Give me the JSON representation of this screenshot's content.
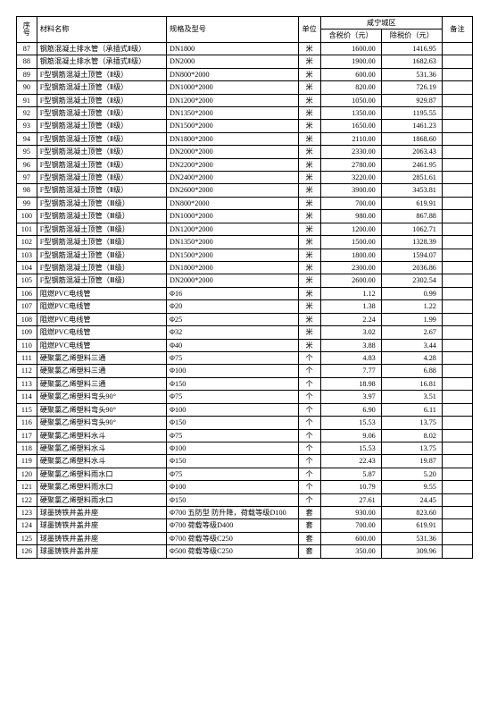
{
  "header": {
    "seq": "序\n号",
    "name": "材料名称",
    "spec": "规格及型号",
    "unit": "单位",
    "region": "咸宁城区",
    "price_tax": "含税价（元）",
    "price_notax": "除税价（元）",
    "note": "备注"
  },
  "rows": [
    {
      "seq": "87",
      "name": "钢筋混凝土排水管（承插式Ⅱ级）",
      "spec": "DN1800",
      "unit": "米",
      "p1": "1600.00",
      "p2": "1416.95",
      "note": ""
    },
    {
      "seq": "88",
      "name": "钢筋混凝土排水管（承插式Ⅱ级）",
      "spec": "DN2000",
      "unit": "米",
      "p1": "1900.00",
      "p2": "1682.63",
      "note": ""
    },
    {
      "seq": "89",
      "name": "F型钢筋混凝土顶管（Ⅱ级）",
      "spec": "DN800*2000",
      "unit": "米",
      "p1": "600.00",
      "p2": "531.36",
      "note": ""
    },
    {
      "seq": "90",
      "name": "F型钢筋混凝土顶管（Ⅱ级）",
      "spec": "DN1000*2000",
      "unit": "米",
      "p1": "820.00",
      "p2": "726.19",
      "note": ""
    },
    {
      "seq": "91",
      "name": "F型钢筋混凝土顶管（Ⅱ级）",
      "spec": "DN1200*2000",
      "unit": "米",
      "p1": "1050.00",
      "p2": "929.87",
      "note": ""
    },
    {
      "seq": "92",
      "name": "F型钢筋混凝土顶管（Ⅱ级）",
      "spec": "DN1350*2000",
      "unit": "米",
      "p1": "1350.00",
      "p2": "1195.55",
      "note": ""
    },
    {
      "seq": "93",
      "name": "F型钢筋混凝土顶管（Ⅱ级）",
      "spec": "DN1500*2000",
      "unit": "米",
      "p1": "1650.00",
      "p2": "1461.23",
      "note": ""
    },
    {
      "seq": "94",
      "name": "F型钢筋混凝土顶管（Ⅱ级）",
      "spec": "DN1800*2000",
      "unit": "米",
      "p1": "2110.00",
      "p2": "1868.60",
      "note": ""
    },
    {
      "seq": "95",
      "name": "F型钢筋混凝土顶管（Ⅱ级）",
      "spec": "DN2000*2000",
      "unit": "米",
      "p1": "2330.00",
      "p2": "2063.43",
      "note": ""
    },
    {
      "seq": "96",
      "name": "F型钢筋混凝土顶管（Ⅱ级）",
      "spec": "DN2200*2000",
      "unit": "米",
      "p1": "2780.00",
      "p2": "2461.95",
      "note": ""
    },
    {
      "seq": "97",
      "name": "F型钢筋混凝土顶管（Ⅱ级）",
      "spec": "DN2400*2000",
      "unit": "米",
      "p1": "3220.00",
      "p2": "2851.61",
      "note": ""
    },
    {
      "seq": "98",
      "name": "F型钢筋混凝土顶管（Ⅱ级）",
      "spec": "DN2600*2000",
      "unit": "米",
      "p1": "3900.00",
      "p2": "3453.81",
      "note": ""
    },
    {
      "seq": "99",
      "name": "F型钢筋混凝土顶管（Ⅲ级）",
      "spec": "DN800*2000",
      "unit": "米",
      "p1": "700.00",
      "p2": "619.91",
      "note": ""
    },
    {
      "seq": "100",
      "name": "F型钢筋混凝土顶管（Ⅲ级）",
      "spec": "DN1000*2000",
      "unit": "米",
      "p1": "980.00",
      "p2": "867.88",
      "note": ""
    },
    {
      "seq": "101",
      "name": "F型钢筋混凝土顶管（Ⅲ级）",
      "spec": "DN1200*2000",
      "unit": "米",
      "p1": "1200.00",
      "p2": "1062.71",
      "note": ""
    },
    {
      "seq": "102",
      "name": "F型钢筋混凝土顶管（Ⅲ级）",
      "spec": "DN1350*2000",
      "unit": "米",
      "p1": "1500.00",
      "p2": "1328.39",
      "note": ""
    },
    {
      "seq": "103",
      "name": "F型钢筋混凝土顶管（Ⅲ级）",
      "spec": "DN1500*2000",
      "unit": "米",
      "p1": "1800.00",
      "p2": "1594.07",
      "note": ""
    },
    {
      "seq": "104",
      "name": "F型钢筋混凝土顶管（Ⅲ级）",
      "spec": "DN1800*2000",
      "unit": "米",
      "p1": "2300.00",
      "p2": "2036.86",
      "note": ""
    },
    {
      "seq": "105",
      "name": "F型钢筋混凝土顶管（Ⅲ级）",
      "spec": "DN2000*2000",
      "unit": "米",
      "p1": "2600.00",
      "p2": "2302.54",
      "note": ""
    },
    {
      "seq": "106",
      "name": "阻燃PVC电线管",
      "spec": "Φ16",
      "unit": "米",
      "p1": "1.12",
      "p2": "0.99",
      "note": ""
    },
    {
      "seq": "107",
      "name": "阻燃PVC电线管",
      "spec": "Φ20",
      "unit": "米",
      "p1": "1.38",
      "p2": "1.22",
      "note": ""
    },
    {
      "seq": "108",
      "name": "阻燃PVC电线管",
      "spec": "Φ25",
      "unit": "米",
      "p1": "2.24",
      "p2": "1.99",
      "note": ""
    },
    {
      "seq": "109",
      "name": "阻燃PVC电线管",
      "spec": "Φ32",
      "unit": "米",
      "p1": "3.02",
      "p2": "2.67",
      "note": ""
    },
    {
      "seq": "110",
      "name": "阻燃PVC电线管",
      "spec": "Φ40",
      "unit": "米",
      "p1": "3.88",
      "p2": "3.44",
      "note": ""
    },
    {
      "seq": "111",
      "name": "硬聚氯乙烯塑料三通",
      "spec": "Φ75",
      "unit": "个",
      "p1": "4.83",
      "p2": "4.28",
      "note": ""
    },
    {
      "seq": "112",
      "name": "硬聚氯乙烯塑料三通",
      "spec": "Φ100",
      "unit": "个",
      "p1": "7.77",
      "p2": "6.88",
      "note": ""
    },
    {
      "seq": "113",
      "name": "硬聚氯乙烯塑料三通",
      "spec": "Φ150",
      "unit": "个",
      "p1": "18.98",
      "p2": "16.81",
      "note": ""
    },
    {
      "seq": "114",
      "name": "硬聚氯乙烯塑料弯头90°",
      "spec": "Φ75",
      "unit": "个",
      "p1": "3.97",
      "p2": "3.51",
      "note": ""
    },
    {
      "seq": "115",
      "name": "硬聚氯乙烯塑料弯头90°",
      "spec": "Φ100",
      "unit": "个",
      "p1": "6.90",
      "p2": "6.11",
      "note": ""
    },
    {
      "seq": "116",
      "name": "硬聚氯乙烯塑料弯头90°",
      "spec": "Φ150",
      "unit": "个",
      "p1": "15.53",
      "p2": "13.75",
      "note": ""
    },
    {
      "seq": "117",
      "name": "硬聚氯乙烯塑料水斗",
      "spec": "Φ75",
      "unit": "个",
      "p1": "9.06",
      "p2": "8.02",
      "note": ""
    },
    {
      "seq": "118",
      "name": "硬聚氯乙烯塑料水斗",
      "spec": "Φ100",
      "unit": "个",
      "p1": "15.53",
      "p2": "13.75",
      "note": ""
    },
    {
      "seq": "119",
      "name": "硬聚氯乙烯塑料水斗",
      "spec": "Φ150",
      "unit": "个",
      "p1": "22.43",
      "p2": "19.87",
      "note": ""
    },
    {
      "seq": "120",
      "name": "硬聚氯乙烯塑料雨水口",
      "spec": "Φ75",
      "unit": "个",
      "p1": "5.87",
      "p2": "5.20",
      "note": ""
    },
    {
      "seq": "121",
      "name": "硬聚氯乙烯塑料雨水口",
      "spec": "Φ100",
      "unit": "个",
      "p1": "10.79",
      "p2": "9.55",
      "note": ""
    },
    {
      "seq": "122",
      "name": "硬聚氯乙烯塑料雨水口",
      "spec": "Φ150",
      "unit": "个",
      "p1": "27.61",
      "p2": "24.45",
      "note": ""
    },
    {
      "seq": "123",
      "name": "球墨铸铁井盖井座",
      "spec": "Φ700 五防型 防升降，荷载等级D100",
      "unit": "套",
      "p1": "930.00",
      "p2": "823.60",
      "note": ""
    },
    {
      "seq": "124",
      "name": "球墨铸铁井盖井座",
      "spec": "Φ700 荷载等级D400",
      "unit": "套",
      "p1": "700.00",
      "p2": "619.91",
      "note": ""
    },
    {
      "seq": "125",
      "name": "球墨铸铁井盖井座",
      "spec": "Φ700 荷载等级C250",
      "unit": "套",
      "p1": "600.00",
      "p2": "531.36",
      "note": ""
    },
    {
      "seq": "126",
      "name": "球墨铸铁井盖井座",
      "spec": "Φ500 荷载等级C250",
      "unit": "套",
      "p1": "350.00",
      "p2": "309.96",
      "note": ""
    }
  ]
}
